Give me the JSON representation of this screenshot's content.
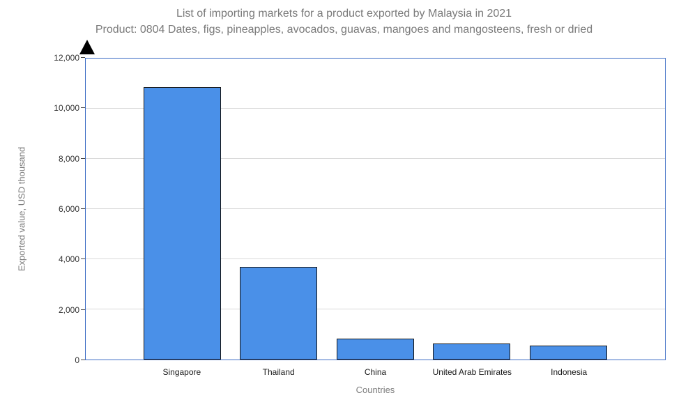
{
  "chart_data": {
    "type": "bar",
    "title": "List of importing markets for a product exported by Malaysia in 2021",
    "subtitle": "Product: 0804 Dates, figs, pineapples, avocados, guavas, mangoes and mangosteens, fresh or dried",
    "categories": [
      "Singapore",
      "Thailand",
      "China",
      "United Arab Emirates",
      "Indonesia"
    ],
    "values": [
      10850,
      3700,
      840,
      650,
      560
    ],
    "xlabel": "Countries",
    "ylabel": "Exported value, USD thousand",
    "ylim": [
      0,
      12000
    ],
    "yticks": [
      0,
      2000,
      4000,
      6000,
      8000,
      10000,
      12000
    ],
    "grid": true,
    "legend": "none",
    "colors": {
      "bar_fill": "#4a90e8",
      "bar_border": "#161616",
      "plot_border": "#3a6bc4",
      "gridline": "#d9d9d9",
      "title_text": "#7a7a7a",
      "axis_text": "#333333"
    }
  }
}
